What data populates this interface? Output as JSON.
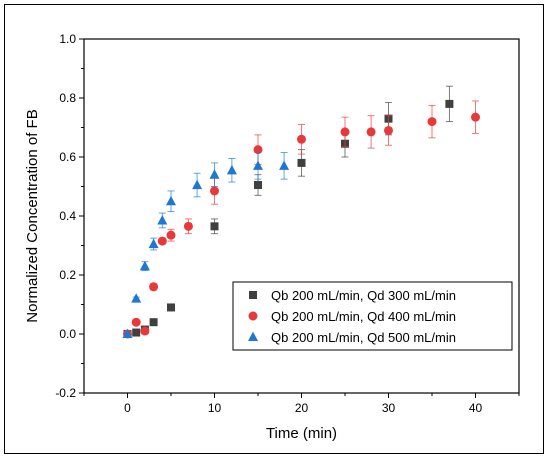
{
  "chart_data": {
    "type": "scatter",
    "title": "",
    "xlabel": "Time (min)",
    "ylabel": "Normalized Concentration of FB",
    "xlim": [
      -5,
      45
    ],
    "ylim": [
      -0.2,
      1.0
    ],
    "xticks": [
      0,
      10,
      20,
      30,
      40
    ],
    "xtick_labels": [
      "0",
      "10",
      "20",
      "30",
      "40"
    ],
    "yticks": [
      -0.2,
      0.0,
      0.2,
      0.4,
      0.6,
      0.8,
      1.0
    ],
    "ytick_labels": [
      "-0.2",
      "0.0",
      "0.2",
      "0.4",
      "0.6",
      "0.8",
      "1.0"
    ],
    "grid": false,
    "legend_position": "bottom-right",
    "series": [
      {
        "name": "Qb 200 mL/min, Qd 300 mL/min",
        "marker": "square",
        "color": "#404040",
        "x": [
          0,
          1,
          2,
          3,
          5,
          10,
          15,
          20,
          25,
          30,
          37
        ],
        "y": [
          0.0,
          0.005,
          0.015,
          0.04,
          0.09,
          0.365,
          0.505,
          0.58,
          0.645,
          0.73,
          0.78
        ],
        "err": [
          0.0,
          0.005,
          0.005,
          0.005,
          0.005,
          0.025,
          0.035,
          0.045,
          0.045,
          0.055,
          0.06
        ]
      },
      {
        "name": "Qb 200 mL/min, Qd 400 mL/min",
        "marker": "circle",
        "color": "#e8393a",
        "x": [
          0,
          1,
          2,
          3,
          4,
          5,
          7,
          10,
          15,
          20,
          25,
          28,
          30,
          35,
          40
        ],
        "y": [
          0.0,
          0.04,
          0.01,
          0.16,
          0.315,
          0.335,
          0.365,
          0.485,
          0.625,
          0.66,
          0.685,
          0.685,
          0.69,
          0.72,
          0.735
        ],
        "err": [
          0.0,
          0.005,
          0.005,
          0.01,
          0.01,
          0.02,
          0.025,
          0.045,
          0.05,
          0.05,
          0.05,
          0.055,
          0.05,
          0.055,
          0.055
        ]
      },
      {
        "name": "Qb 200 mL/min, Qd 500 mL/min",
        "marker": "triangle",
        "color": "#1f77d4",
        "x": [
          0,
          1,
          2,
          3,
          4,
          5,
          8,
          10,
          12,
          15,
          18
        ],
        "y": [
          0.0,
          0.12,
          0.23,
          0.305,
          0.385,
          0.45,
          0.505,
          0.54,
          0.555,
          0.57,
          0.57
        ],
        "err": [
          0.0,
          0.005,
          0.015,
          0.02,
          0.025,
          0.035,
          0.04,
          0.04,
          0.04,
          0.045,
          0.045
        ]
      }
    ]
  }
}
